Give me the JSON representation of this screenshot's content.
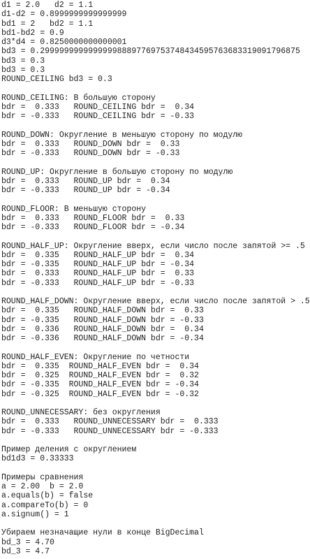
{
  "blocks": [
    {
      "lines": [
        "d1 = 2.0   d2 = 1.1",
        "d1-d2 = 0.8999999999999999",
        "bd1 = 2   bd2 = 1.1",
        "bd1-bd2 = 0.9",
        "d3*d4 = 0.8250000000000001",
        "bd3 = 0.299999999999999988897769753748434595763683319091796875",
        "bd3 = 0.3",
        "bd3 = 0.3",
        "ROUND_CEILING bd3 = 0.3"
      ]
    },
    {
      "lines": [
        "ROUND_CEILING: В большую сторону",
        "bdr =  0.333   ROUND_CEILING bdr =  0.34",
        "bdr = -0.333   ROUND_CEILING bdr = -0.33"
      ]
    },
    {
      "lines": [
        "ROUND_DOWN: Округление в меньшую сторону по модулю",
        "bdr =  0.333   ROUND_DOWN bdr =  0.33",
        "bdr = -0.333   ROUND_DOWN bdr = -0.33"
      ]
    },
    {
      "lines": [
        "ROUND_UP: Округление в большую сторону по модулю",
        "bdr =  0.333   ROUND_UP bdr =  0.34",
        "bdr = -0.333   ROUND_UP bdr = -0.34"
      ]
    },
    {
      "lines": [
        "ROUND_FLOOR: В меньшую сторону",
        "bdr =  0.333   ROUND_FLOOR bdr =  0.33",
        "bdr = -0.333   ROUND_FLOOR bdr = -0.34"
      ]
    },
    {
      "lines": [
        "ROUND_HALF_UP: Округление вверх, если число после запятой >= .5",
        "bdr =  0.335   ROUND_HALF_UP bdr =  0.34",
        "bdr = -0.335   ROUND_HALF_UP bdr = -0.34",
        "bdr =  0.333   ROUND_HALF_UP bdr =  0.33",
        "bdr = -0.333   ROUND_HALF_UP bdr = -0.33"
      ]
    },
    {
      "lines": [
        "ROUND_HALF_DOWN: Округление вверх, если число после запятой > .5",
        "bdr =  0.335   ROUND_HALF_DOWN bdr =  0.33",
        "bdr = -0.335   ROUND_HALF_DOWN bdr = -0.33",
        "bdr =  0.336   ROUND_HALF_DOWN bdr =  0.34",
        "bdr = -0.336   ROUND_HALF_DOWN bdr = -0.34"
      ]
    },
    {
      "lines": [
        "ROUND_HALF_EVEN: Округление по четности",
        "bdr =  0.335  ROUND_HALF_EVEN bdr =  0.34",
        "bdr =  0.325  ROUND_HALF_EVEN bdr =  0.32",
        "bdr = -0.335  ROUND_HALF_EVEN bdr = -0.34",
        "bdr = -0.325  ROUND_HALF_EVEN bdr = -0.32"
      ]
    },
    {
      "lines": [
        "ROUND_UNNECESSARY: без округления",
        "bdr =  0.333   ROUND_UNNECESSARY bdr =  0.333",
        "bdr = -0.333   ROUND_UNNECESSARY bdr = -0.333"
      ]
    },
    {
      "lines": [
        "Пример деления с округлением",
        "bd1d3 = 0.33333"
      ]
    },
    {
      "lines": [
        "Примеры сравнения",
        "a = 2.00  b = 2.0",
        "a.equals(b) = false",
        "a.compareTo(b) = 0",
        "a.signum() = 1"
      ]
    },
    {
      "lines": [
        "Убираем незначащие нули в конце BigDecimal",
        "bd_3 = 4.70",
        "bd_3 = 4.7"
      ]
    }
  ]
}
